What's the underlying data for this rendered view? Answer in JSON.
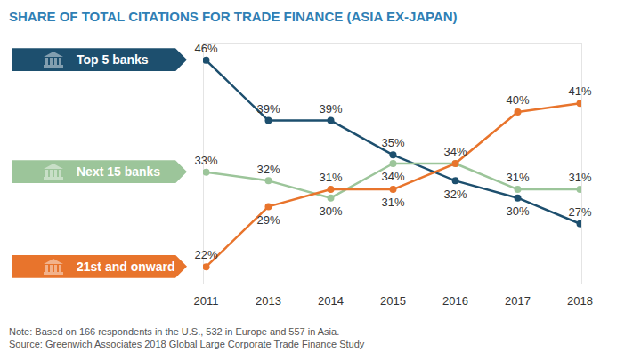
{
  "chart_data": {
    "type": "line",
    "title": "SHARE OF TOTAL CITATIONS FOR TRADE FINANCE (ASIA EX-JAPAN)",
    "note": "Note: Based on 166 respondents in the U.S., 532 in Europe and 557 in Asia.",
    "source": "Source: Greenwich Associates 2018 Global Large Corporate Trade Finance Study",
    "categories": [
      "2011",
      "2013",
      "2014",
      "2015",
      "2016",
      "2017",
      "2018"
    ],
    "series": [
      {
        "name": "Top 5 banks",
        "color": "#1d4f6e",
        "values": [
          46,
          39,
          39,
          35,
          32,
          30,
          27
        ],
        "value_labels": [
          "46%",
          "39%",
          "39%",
          "35%",
          "32%",
          "30%",
          "27%"
        ]
      },
      {
        "name": "Next 15 banks",
        "color": "#9cc59a",
        "values": [
          33,
          32,
          30,
          34,
          34,
          31,
          31
        ],
        "value_labels": [
          "33%",
          "32%",
          "30%",
          "34%",
          "34%",
          "31%",
          "31%"
        ]
      },
      {
        "name": "21st and onward",
        "color": "#e8742c",
        "values": [
          22,
          29,
          31,
          31,
          34,
          40,
          41
        ],
        "value_labels": [
          "22%",
          "29%",
          "31%",
          "31%",
          "34%",
          "40%",
          "41%"
        ]
      }
    ],
    "ylim": [
      20,
      48
    ],
    "yticks": [],
    "data_labels": true,
    "tick_labels": "x",
    "legend": "left",
    "marker": "circle"
  }
}
